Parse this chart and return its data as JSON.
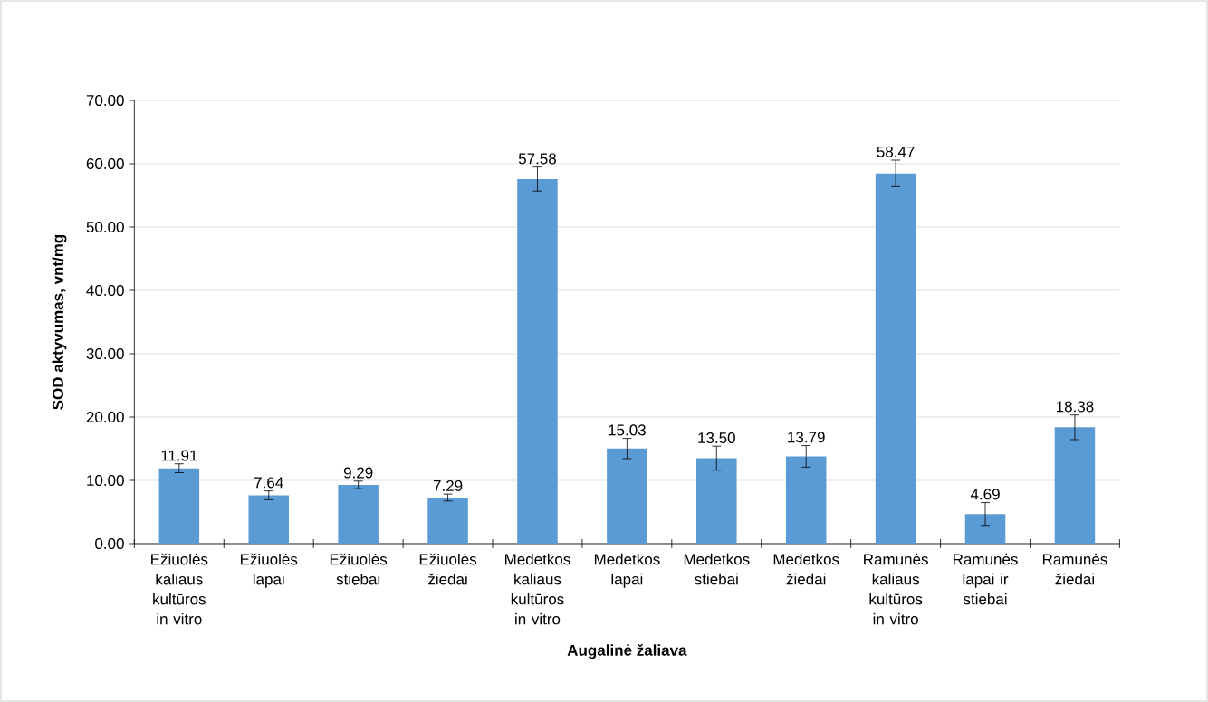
{
  "chart_data": {
    "type": "bar",
    "xlabel": "Augalinė žaliava",
    "ylabel": "SOD aktyvumas, vnt/mg",
    "categories": [
      "Ežiuolės kaliaus kultūros in vitro",
      "Ežiuolės lapai",
      "Ežiuolės stiebai",
      "Ežiuolės žiedai",
      "Medetkos kaliaus kultūros in vitro",
      "Medetkos lapai",
      "Medetkos stiebai",
      "Medetkos žiedai",
      "Ramunės kaliaus kultūros in vitro",
      "Ramunės lapai ir stiebai",
      "Ramunės žiedai"
    ],
    "values": [
      11.91,
      7.64,
      9.29,
      7.29,
      57.58,
      15.03,
      13.5,
      13.79,
      58.47,
      4.69,
      18.38
    ],
    "value_labels": [
      "11.91",
      "7.64",
      "9.29",
      "7.29",
      "57.58",
      "15.03",
      "13.50",
      "13.79",
      "58.47",
      "4.69",
      "18.38"
    ],
    "errors": [
      0.7,
      0.7,
      0.6,
      0.55,
      1.9,
      1.6,
      1.9,
      1.7,
      2.1,
      1.8,
      1.95
    ],
    "color": "#5b9bd5",
    "ylim": [
      0,
      70
    ],
    "yticks": [
      {
        "value": 0,
        "label": "0.00"
      },
      {
        "value": 10,
        "label": "10.00"
      },
      {
        "value": 20,
        "label": "20.00"
      },
      {
        "value": 30,
        "label": "30.00"
      },
      {
        "value": 40,
        "label": "40.00"
      },
      {
        "value": 50,
        "label": "50.00"
      },
      {
        "value": 60,
        "label": "60.00"
      },
      {
        "value": 70,
        "label": "70.00"
      }
    ],
    "grid": "y"
  }
}
